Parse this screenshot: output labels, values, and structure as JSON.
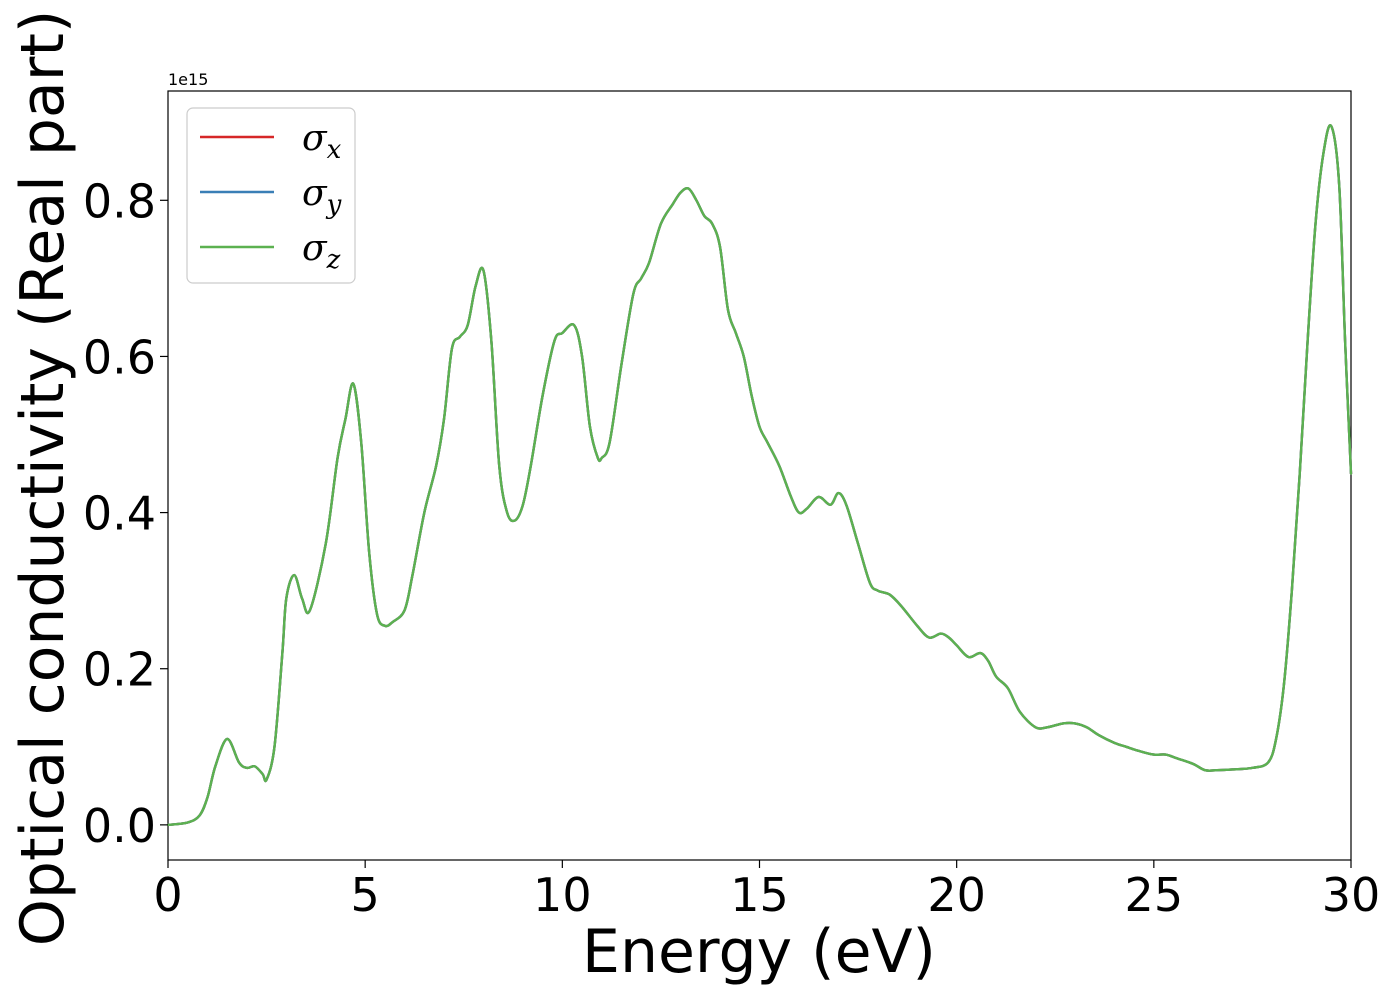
{
  "chart_data": {
    "type": "line",
    "title": "",
    "xlabel": "Energy (eV)",
    "ylabel": "Optical conductivity (Real part)",
    "y_offset_label": "1e15",
    "xlim": [
      0,
      30
    ],
    "ylim": [
      -0.045,
      0.94
    ],
    "xticks": [
      0,
      5,
      10,
      15,
      20,
      25,
      30
    ],
    "xtick_labels": [
      "0",
      "5",
      "10",
      "15",
      "20",
      "25",
      "30"
    ],
    "yticks": [
      0.0,
      0.2,
      0.4,
      0.6,
      0.8
    ],
    "ytick_labels": [
      "0.0",
      "0.2",
      "0.4",
      "0.6",
      "0.8"
    ],
    "grid": false,
    "legend_position": "top-left",
    "x": [
      0,
      0.5,
      0.8,
      1.0,
      1.2,
      1.5,
      1.8,
      2.0,
      2.2,
      2.4,
      2.5,
      2.7,
      2.9,
      3.0,
      3.2,
      3.4,
      3.6,
      4.0,
      4.3,
      4.5,
      4.7,
      4.9,
      5.1,
      5.3,
      5.5,
      5.7,
      6.0,
      6.2,
      6.5,
      6.8,
      7.0,
      7.2,
      7.4,
      7.6,
      7.8,
      8.0,
      8.2,
      8.4,
      8.6,
      8.8,
      9.0,
      9.2,
      9.5,
      9.8,
      10.0,
      10.3,
      10.5,
      10.7,
      10.9,
      11.0,
      11.2,
      11.5,
      11.8,
      12.0,
      12.2,
      12.5,
      12.8,
      13.0,
      13.2,
      13.4,
      13.6,
      13.8,
      14.0,
      14.2,
      14.4,
      14.6,
      14.8,
      15.0,
      15.2,
      15.5,
      15.8,
      16.0,
      16.2,
      16.5,
      16.8,
      17.0,
      17.2,
      17.5,
      17.8,
      18.0,
      18.3,
      18.6,
      19.0,
      19.3,
      19.6,
      19.8,
      20.0,
      20.3,
      20.6,
      20.8,
      21.0,
      21.3,
      21.6,
      22.0,
      22.3,
      22.7,
      23.0,
      23.3,
      23.6,
      24.0,
      24.3,
      24.6,
      25.0,
      25.3,
      25.6,
      26.0,
      26.3,
      26.6,
      27.0,
      27.5,
      27.9,
      28.1,
      28.3,
      28.5,
      28.7,
      28.9,
      29.1,
      29.3,
      29.5,
      29.7,
      29.85,
      30.0
    ],
    "series": [
      {
        "name": "x",
        "color": "#d62728",
        "values": [
          0.0,
          0.003,
          0.012,
          0.035,
          0.075,
          0.11,
          0.08,
          0.073,
          0.075,
          0.065,
          0.058,
          0.1,
          0.22,
          0.29,
          0.32,
          0.29,
          0.275,
          0.36,
          0.47,
          0.52,
          0.565,
          0.49,
          0.35,
          0.27,
          0.255,
          0.26,
          0.275,
          0.32,
          0.4,
          0.46,
          0.52,
          0.61,
          0.625,
          0.64,
          0.69,
          0.71,
          0.62,
          0.46,
          0.4,
          0.39,
          0.41,
          0.46,
          0.55,
          0.62,
          0.63,
          0.64,
          0.6,
          0.51,
          0.47,
          0.47,
          0.49,
          0.59,
          0.68,
          0.7,
          0.72,
          0.77,
          0.795,
          0.81,
          0.815,
          0.8,
          0.78,
          0.77,
          0.74,
          0.66,
          0.63,
          0.6,
          0.55,
          0.51,
          0.49,
          0.46,
          0.42,
          0.4,
          0.405,
          0.42,
          0.41,
          0.425,
          0.41,
          0.36,
          0.31,
          0.3,
          0.295,
          0.28,
          0.255,
          0.24,
          0.245,
          0.24,
          0.23,
          0.215,
          0.22,
          0.21,
          0.19,
          0.175,
          0.145,
          0.125,
          0.125,
          0.13,
          0.13,
          0.125,
          0.115,
          0.105,
          0.1,
          0.095,
          0.09,
          0.09,
          0.085,
          0.078,
          0.07,
          0.07,
          0.071,
          0.073,
          0.08,
          0.11,
          0.18,
          0.3,
          0.45,
          0.62,
          0.77,
          0.86,
          0.895,
          0.82,
          0.62,
          0.45
        ]
      },
      {
        "name": "y",
        "color": "#3a7fb6",
        "values": [
          0.0,
          0.003,
          0.012,
          0.035,
          0.075,
          0.11,
          0.08,
          0.073,
          0.075,
          0.065,
          0.058,
          0.1,
          0.22,
          0.29,
          0.32,
          0.29,
          0.275,
          0.36,
          0.47,
          0.52,
          0.565,
          0.49,
          0.35,
          0.27,
          0.255,
          0.26,
          0.275,
          0.32,
          0.4,
          0.46,
          0.52,
          0.61,
          0.625,
          0.64,
          0.69,
          0.71,
          0.62,
          0.46,
          0.4,
          0.39,
          0.41,
          0.46,
          0.55,
          0.62,
          0.63,
          0.64,
          0.6,
          0.51,
          0.47,
          0.47,
          0.49,
          0.59,
          0.68,
          0.7,
          0.72,
          0.77,
          0.795,
          0.81,
          0.815,
          0.8,
          0.78,
          0.77,
          0.74,
          0.66,
          0.63,
          0.6,
          0.55,
          0.51,
          0.49,
          0.46,
          0.42,
          0.4,
          0.405,
          0.42,
          0.41,
          0.425,
          0.41,
          0.36,
          0.31,
          0.3,
          0.295,
          0.28,
          0.255,
          0.24,
          0.245,
          0.24,
          0.23,
          0.215,
          0.22,
          0.21,
          0.19,
          0.175,
          0.145,
          0.125,
          0.125,
          0.13,
          0.13,
          0.125,
          0.115,
          0.105,
          0.1,
          0.095,
          0.09,
          0.09,
          0.085,
          0.078,
          0.07,
          0.07,
          0.071,
          0.073,
          0.08,
          0.11,
          0.18,
          0.3,
          0.45,
          0.62,
          0.77,
          0.86,
          0.895,
          0.82,
          0.62,
          0.45
        ]
      },
      {
        "name": "z",
        "color": "#5cb150",
        "values": [
          0.0,
          0.003,
          0.012,
          0.035,
          0.075,
          0.11,
          0.08,
          0.073,
          0.075,
          0.065,
          0.058,
          0.1,
          0.22,
          0.29,
          0.32,
          0.29,
          0.275,
          0.36,
          0.47,
          0.52,
          0.565,
          0.49,
          0.35,
          0.27,
          0.255,
          0.26,
          0.275,
          0.32,
          0.4,
          0.46,
          0.52,
          0.61,
          0.625,
          0.64,
          0.69,
          0.71,
          0.62,
          0.46,
          0.4,
          0.39,
          0.41,
          0.46,
          0.55,
          0.62,
          0.63,
          0.64,
          0.6,
          0.51,
          0.47,
          0.47,
          0.49,
          0.59,
          0.68,
          0.7,
          0.72,
          0.77,
          0.795,
          0.81,
          0.815,
          0.8,
          0.78,
          0.77,
          0.74,
          0.66,
          0.63,
          0.6,
          0.55,
          0.51,
          0.49,
          0.46,
          0.42,
          0.4,
          0.405,
          0.42,
          0.41,
          0.425,
          0.41,
          0.36,
          0.31,
          0.3,
          0.295,
          0.28,
          0.255,
          0.24,
          0.245,
          0.24,
          0.23,
          0.215,
          0.22,
          0.21,
          0.19,
          0.175,
          0.145,
          0.125,
          0.125,
          0.13,
          0.13,
          0.125,
          0.115,
          0.105,
          0.1,
          0.095,
          0.09,
          0.09,
          0.085,
          0.078,
          0.07,
          0.07,
          0.071,
          0.073,
          0.08,
          0.11,
          0.18,
          0.3,
          0.45,
          0.62,
          0.77,
          0.86,
          0.895,
          0.82,
          0.62,
          0.45
        ]
      }
    ],
    "legend": [
      {
        "symbol": "σ",
        "sub": "x",
        "color": "#d62728"
      },
      {
        "symbol": "σ",
        "sub": "y",
        "color": "#3a7fb6"
      },
      {
        "symbol": "σ",
        "sub": "z",
        "color": "#5cb150"
      }
    ]
  }
}
